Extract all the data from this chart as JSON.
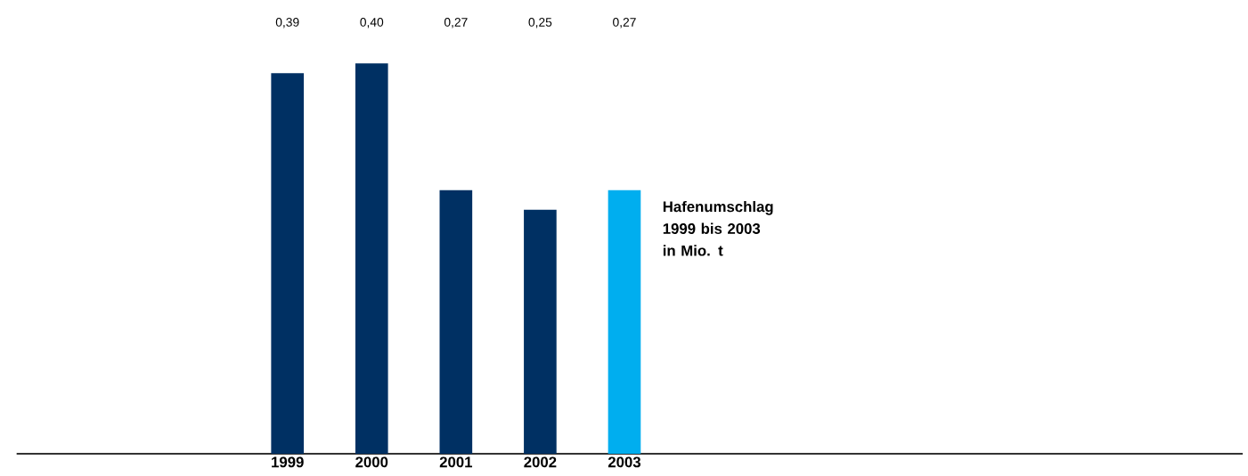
{
  "chart_data": {
    "type": "bar",
    "title": "Hafenumschlag 1999 bis 2003 in Mio. t",
    "categories": [
      "1999",
      "2000",
      "2001",
      "2002",
      "2003"
    ],
    "values": [
      0.39,
      0.4,
      0.27,
      0.25,
      0.27
    ],
    "value_labels": [
      "0,39",
      "0,40",
      "0,27",
      "0,25",
      "0,27"
    ],
    "colors": [
      "#003063",
      "#003063",
      "#003063",
      "#003063",
      "#00aeef"
    ],
    "ylim": [
      0,
      0.4
    ]
  }
}
